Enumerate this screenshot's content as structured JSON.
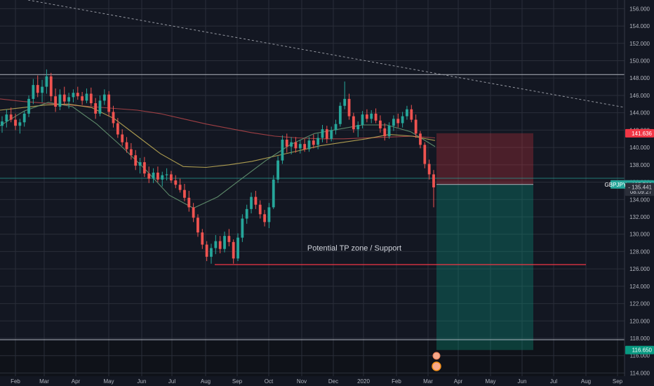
{
  "chart_data": {
    "type": "candlestick",
    "symbol": "GBPJPY",
    "x_ticks": [
      "Feb",
      "Mar",
      "Apr",
      "May",
      "Jun",
      "Jul",
      "Aug",
      "Sep",
      "Oct",
      "Nov",
      "Dec",
      "2020",
      "Feb",
      "Mar",
      "Apr",
      "May",
      "Jun",
      "Jul",
      "Aug",
      "Sep"
    ],
    "y_ticks": [
      114,
      116,
      118,
      120,
      122,
      124,
      126,
      128,
      130,
      132,
      134,
      136,
      138,
      140,
      142,
      144,
      146,
      148,
      150,
      152,
      154,
      156
    ],
    "y_tick_labels": [
      "114.000",
      "116.000",
      "118.000",
      "120.000",
      "122.000",
      "124.000",
      "126.000",
      "128.000",
      "130.000",
      "132.000",
      "134.000",
      "136.000",
      "138.000",
      "140.000",
      "142.000",
      "144.000",
      "146.000",
      "148.000",
      "150.000",
      "152.000",
      "154.000",
      "156.000"
    ],
    "ylim": [
      112.5,
      157
    ],
    "price_tags": {
      "stop": {
        "value": 141.636,
        "label": "141.636",
        "color": "#f23645"
      },
      "symbol": {
        "value": 135.738,
        "label": "GBPJPY · 135.738",
        "color": "#26a69a"
      },
      "countdown": {
        "value": 134.9,
        "label": "08:09:27"
      },
      "last": {
        "value": 135.441,
        "label": "- 135.441"
      },
      "target": {
        "value": 116.65,
        "label": "116.650",
        "color": "#089981"
      }
    },
    "horizontal_lines": [
      {
        "name": "resistance",
        "value": 148.4,
        "color": "#b2b5be"
      },
      {
        "name": "support",
        "value": 126.5,
        "color": "#f23645"
      }
    ],
    "annotation": "Potential TP zone / Support",
    "position": {
      "type": "short",
      "entry": 135.738,
      "stop": 141.636,
      "target": 116.65
    },
    "moving_averages": [
      {
        "color": "#b7474a",
        "values": [
          145.6,
          145.3,
          145.1,
          144.9,
          144.7,
          144.5,
          144.3,
          143.9,
          143.3,
          142.7,
          142.2,
          141.7,
          141.3,
          141.1,
          141.0,
          141.0,
          141.1,
          141.2,
          141.3,
          141.1
        ]
      },
      {
        "color": "#c9b458",
        "values": [
          144.3,
          144.6,
          144.9,
          145.0,
          144.6,
          143.3,
          141.3,
          139.3,
          137.8,
          137.7,
          138.0,
          138.4,
          139.0,
          139.6,
          140.2,
          140.6,
          141.0,
          141.5,
          141.3,
          140.8
        ]
      },
      {
        "color": "#6a9c76",
        "values": [
          142.5,
          144.2,
          145.2,
          144.7,
          142.7,
          140.2,
          137.5,
          134.5,
          133.0,
          134.3,
          136.4,
          138.5,
          140.3,
          141.6,
          142.1,
          142.6,
          142.6,
          141.8,
          140.1
        ]
      }
    ],
    "candles": [
      {
        "o": 142.5,
        "h": 143.6,
        "l": 141.7,
        "c": 143.0
      },
      {
        "o": 143.0,
        "h": 144.4,
        "l": 142.3,
        "c": 143.8
      },
      {
        "o": 143.8,
        "h": 144.6,
        "l": 142.9,
        "c": 143.2
      },
      {
        "o": 143.2,
        "h": 143.9,
        "l": 142.0,
        "c": 142.5
      },
      {
        "o": 142.5,
        "h": 143.3,
        "l": 141.6,
        "c": 142.9
      },
      {
        "o": 142.9,
        "h": 144.2,
        "l": 142.4,
        "c": 143.9
      },
      {
        "o": 143.9,
        "h": 146.0,
        "l": 143.5,
        "c": 145.6
      },
      {
        "o": 145.6,
        "h": 147.9,
        "l": 145.0,
        "c": 147.2
      },
      {
        "o": 147.2,
        "h": 148.3,
        "l": 145.8,
        "c": 146.3
      },
      {
        "o": 146.3,
        "h": 147.8,
        "l": 145.2,
        "c": 147.0
      },
      {
        "o": 147.0,
        "h": 149.0,
        "l": 146.2,
        "c": 148.2
      },
      {
        "o": 148.2,
        "h": 148.6,
        "l": 145.3,
        "c": 145.9
      },
      {
        "o": 145.9,
        "h": 146.8,
        "l": 144.1,
        "c": 144.7
      },
      {
        "o": 144.7,
        "h": 146.7,
        "l": 144.3,
        "c": 146.1
      },
      {
        "o": 146.1,
        "h": 147.0,
        "l": 144.9,
        "c": 145.3
      },
      {
        "o": 145.3,
        "h": 146.3,
        "l": 144.5,
        "c": 145.8
      },
      {
        "o": 145.8,
        "h": 146.7,
        "l": 145.2,
        "c": 146.3
      },
      {
        "o": 146.3,
        "h": 147.0,
        "l": 145.5,
        "c": 145.9
      },
      {
        "o": 145.9,
        "h": 146.4,
        "l": 144.9,
        "c": 145.4
      },
      {
        "o": 145.4,
        "h": 146.8,
        "l": 145.1,
        "c": 146.2
      },
      {
        "o": 146.2,
        "h": 146.9,
        "l": 144.8,
        "c": 145.1
      },
      {
        "o": 145.1,
        "h": 145.7,
        "l": 143.3,
        "c": 143.9
      },
      {
        "o": 143.9,
        "h": 146.0,
        "l": 143.6,
        "c": 145.4
      },
      {
        "o": 145.4,
        "h": 146.7,
        "l": 144.9,
        "c": 146.1
      },
      {
        "o": 146.1,
        "h": 146.5,
        "l": 143.6,
        "c": 144.1
      },
      {
        "o": 144.1,
        "h": 144.8,
        "l": 142.3,
        "c": 142.8
      },
      {
        "o": 142.8,
        "h": 143.4,
        "l": 141.1,
        "c": 141.5
      },
      {
        "o": 141.5,
        "h": 142.1,
        "l": 140.2,
        "c": 140.6
      },
      {
        "o": 140.6,
        "h": 141.2,
        "l": 139.4,
        "c": 139.8
      },
      {
        "o": 139.8,
        "h": 140.5,
        "l": 138.6,
        "c": 139.1
      },
      {
        "o": 139.1,
        "h": 139.7,
        "l": 137.4,
        "c": 137.9
      },
      {
        "o": 137.9,
        "h": 138.8,
        "l": 137.0,
        "c": 138.3
      },
      {
        "o": 138.3,
        "h": 138.9,
        "l": 136.6,
        "c": 137.0
      },
      {
        "o": 137.0,
        "h": 137.8,
        "l": 135.9,
        "c": 136.4
      },
      {
        "o": 136.4,
        "h": 137.6,
        "l": 135.9,
        "c": 137.1
      },
      {
        "o": 137.1,
        "h": 137.8,
        "l": 136.0,
        "c": 136.3
      },
      {
        "o": 136.3,
        "h": 137.2,
        "l": 135.5,
        "c": 136.8
      },
      {
        "o": 136.8,
        "h": 137.6,
        "l": 136.2,
        "c": 136.9
      },
      {
        "o": 136.9,
        "h": 137.3,
        "l": 135.9,
        "c": 136.2
      },
      {
        "o": 136.2,
        "h": 136.8,
        "l": 135.3,
        "c": 135.7
      },
      {
        "o": 135.7,
        "h": 136.4,
        "l": 134.8,
        "c": 135.1
      },
      {
        "o": 135.1,
        "h": 135.8,
        "l": 133.8,
        "c": 134.2
      },
      {
        "o": 134.2,
        "h": 135.0,
        "l": 132.6,
        "c": 133.1
      },
      {
        "o": 133.1,
        "h": 133.6,
        "l": 131.4,
        "c": 131.9
      },
      {
        "o": 131.9,
        "h": 132.3,
        "l": 129.7,
        "c": 130.2
      },
      {
        "o": 130.2,
        "h": 130.6,
        "l": 128.3,
        "c": 128.8
      },
      {
        "o": 128.8,
        "h": 129.2,
        "l": 126.9,
        "c": 127.4
      },
      {
        "o": 127.4,
        "h": 128.9,
        "l": 126.6,
        "c": 128.4
      },
      {
        "o": 128.4,
        "h": 129.9,
        "l": 127.7,
        "c": 129.2
      },
      {
        "o": 129.2,
        "h": 129.8,
        "l": 127.8,
        "c": 128.3
      },
      {
        "o": 128.3,
        "h": 130.3,
        "l": 127.9,
        "c": 129.8
      },
      {
        "o": 129.8,
        "h": 130.6,
        "l": 128.6,
        "c": 129.1
      },
      {
        "o": 129.1,
        "h": 129.4,
        "l": 126.6,
        "c": 127.2
      },
      {
        "o": 127.2,
        "h": 130.1,
        "l": 126.9,
        "c": 129.6
      },
      {
        "o": 129.6,
        "h": 132.3,
        "l": 129.1,
        "c": 131.8
      },
      {
        "o": 131.8,
        "h": 133.4,
        "l": 131.2,
        "c": 132.9
      },
      {
        "o": 132.9,
        "h": 134.8,
        "l": 132.4,
        "c": 134.3
      },
      {
        "o": 134.3,
        "h": 135.0,
        "l": 132.9,
        "c": 133.4
      },
      {
        "o": 133.4,
        "h": 133.9,
        "l": 131.8,
        "c": 132.3
      },
      {
        "o": 132.3,
        "h": 132.8,
        "l": 130.9,
        "c": 131.4
      },
      {
        "o": 131.4,
        "h": 133.6,
        "l": 130.7,
        "c": 133.1
      },
      {
        "o": 133.1,
        "h": 136.8,
        "l": 132.9,
        "c": 136.3
      },
      {
        "o": 136.3,
        "h": 139.0,
        "l": 135.9,
        "c": 138.5
      },
      {
        "o": 138.5,
        "h": 141.4,
        "l": 138.1,
        "c": 140.9
      },
      {
        "o": 140.9,
        "h": 141.6,
        "l": 139.4,
        "c": 140.1
      },
      {
        "o": 140.1,
        "h": 141.2,
        "l": 139.2,
        "c": 140.6
      },
      {
        "o": 140.6,
        "h": 141.2,
        "l": 139.4,
        "c": 139.9
      },
      {
        "o": 139.9,
        "h": 140.9,
        "l": 139.3,
        "c": 140.4
      },
      {
        "o": 140.4,
        "h": 141.0,
        "l": 139.5,
        "c": 139.8
      },
      {
        "o": 139.8,
        "h": 141.2,
        "l": 139.5,
        "c": 140.8
      },
      {
        "o": 140.8,
        "h": 141.5,
        "l": 139.9,
        "c": 140.3
      },
      {
        "o": 140.3,
        "h": 141.6,
        "l": 139.8,
        "c": 141.1
      },
      {
        "o": 141.1,
        "h": 142.6,
        "l": 140.6,
        "c": 142.1
      },
      {
        "o": 142.1,
        "h": 142.5,
        "l": 140.5,
        "c": 141.0
      },
      {
        "o": 141.0,
        "h": 142.4,
        "l": 140.7,
        "c": 142.0
      },
      {
        "o": 142.0,
        "h": 143.2,
        "l": 141.5,
        "c": 142.7
      },
      {
        "o": 142.7,
        "h": 145.2,
        "l": 142.4,
        "c": 144.8
      },
      {
        "o": 144.8,
        "h": 147.6,
        "l": 144.4,
        "c": 145.6
      },
      {
        "o": 145.6,
        "h": 146.2,
        "l": 143.2,
        "c": 143.6
      },
      {
        "o": 143.6,
        "h": 144.0,
        "l": 141.7,
        "c": 142.1
      },
      {
        "o": 142.1,
        "h": 143.0,
        "l": 141.2,
        "c": 142.6
      },
      {
        "o": 142.6,
        "h": 144.2,
        "l": 142.2,
        "c": 143.8
      },
      {
        "o": 143.8,
        "h": 144.4,
        "l": 142.9,
        "c": 143.3
      },
      {
        "o": 143.3,
        "h": 144.3,
        "l": 142.8,
        "c": 143.9
      },
      {
        "o": 143.9,
        "h": 144.5,
        "l": 142.8,
        "c": 143.1
      },
      {
        "o": 143.1,
        "h": 143.7,
        "l": 141.7,
        "c": 142.2
      },
      {
        "o": 142.2,
        "h": 142.8,
        "l": 140.8,
        "c": 141.3
      },
      {
        "o": 141.3,
        "h": 142.9,
        "l": 141.0,
        "c": 142.5
      },
      {
        "o": 142.5,
        "h": 143.7,
        "l": 141.9,
        "c": 143.3
      },
      {
        "o": 143.3,
        "h": 143.9,
        "l": 142.3,
        "c": 142.8
      },
      {
        "o": 142.8,
        "h": 144.1,
        "l": 142.3,
        "c": 143.6
      },
      {
        "o": 143.6,
        "h": 144.8,
        "l": 143.2,
        "c": 144.4
      },
      {
        "o": 144.4,
        "h": 144.9,
        "l": 142.9,
        "c": 143.2
      },
      {
        "o": 143.2,
        "h": 143.8,
        "l": 141.1,
        "c": 141.6
      },
      {
        "o": 141.6,
        "h": 141.9,
        "l": 139.9,
        "c": 140.3
      },
      {
        "o": 140.3,
        "h": 140.6,
        "l": 137.6,
        "c": 138.1
      },
      {
        "o": 138.1,
        "h": 138.6,
        "l": 136.3,
        "c": 136.9
      },
      {
        "o": 136.9,
        "h": 137.4,
        "l": 133.1,
        "c": 135.4
      }
    ]
  }
}
